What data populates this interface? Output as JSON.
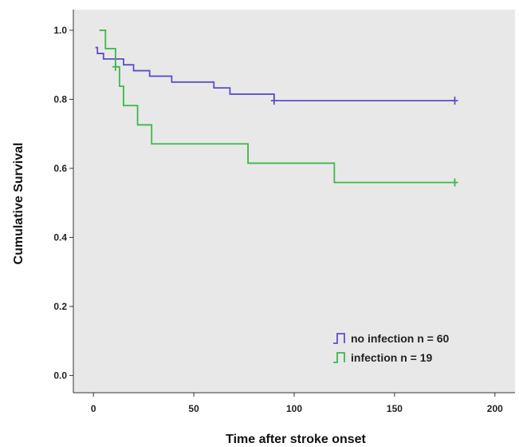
{
  "chart_data": {
    "type": "line",
    "subtype": "kaplan-meier step",
    "xlabel": "Time after stroke onset",
    "ylabel": "Cumulative Survival",
    "xlim": [
      -10,
      210
    ],
    "ylim": [
      -0.05,
      1.06
    ],
    "xticks": [
      0,
      50,
      100,
      150,
      200
    ],
    "yticks": [
      0.0,
      0.2,
      0.4,
      0.6,
      0.8,
      1.0
    ],
    "xtick_labels": [
      "0",
      "50",
      "100",
      "150",
      "200"
    ],
    "ytick_labels": [
      "0.0",
      "0.2",
      "0.4",
      "0.6",
      "0.8",
      "1.0"
    ],
    "grid": false,
    "legend_position": "bottom-right",
    "plot_background": "#e8e8e8",
    "series": [
      {
        "name": "no infection n = 60",
        "color": "#5a4fc8",
        "steps": [
          [
            1,
            0.95
          ],
          [
            2,
            0.933
          ],
          [
            5,
            0.917
          ],
          [
            15,
            0.9
          ],
          [
            20,
            0.883
          ],
          [
            28,
            0.867
          ],
          [
            39,
            0.85
          ],
          [
            60,
            0.833
          ],
          [
            68,
            0.815
          ],
          [
            90,
            0.796
          ],
          [
            180,
            0.796
          ]
        ],
        "censored": [
          [
            90,
            0.796
          ],
          [
            180,
            0.796
          ]
        ]
      },
      {
        "name": "infection n = 19",
        "color": "#3cb84a",
        "steps": [
          [
            3,
            1.0
          ],
          [
            6,
            0.947
          ],
          [
            11,
            0.894
          ],
          [
            13,
            0.838
          ],
          [
            15,
            0.782
          ],
          [
            22,
            0.726
          ],
          [
            29,
            0.671
          ],
          [
            77,
            0.615
          ],
          [
            120,
            0.559
          ],
          [
            180,
            0.559
          ]
        ],
        "censored": [
          [
            11,
            0.894
          ],
          [
            180,
            0.559
          ]
        ]
      }
    ]
  }
}
